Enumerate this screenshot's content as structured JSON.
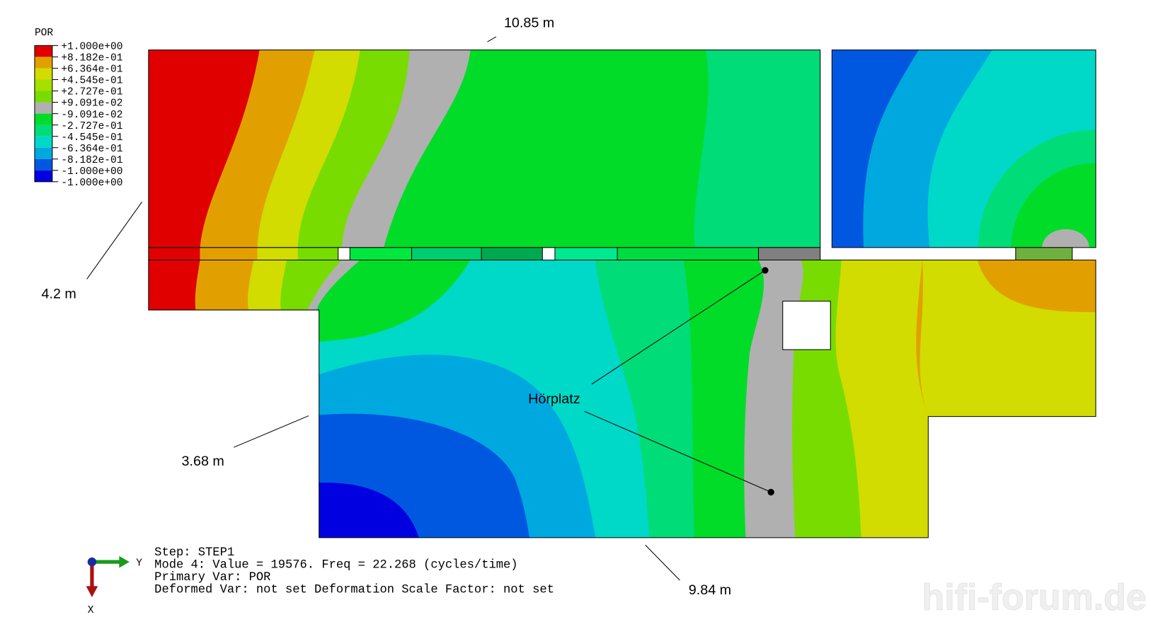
{
  "legend": {
    "title": "POR",
    "labels": [
      "+1.000e+00",
      "+8.182e-01",
      "+6.364e-01",
      "+4.545e-01",
      "+2.727e-01",
      "+9.091e-02",
      "-9.091e-02",
      "-2.727e-01",
      "-4.545e-01",
      "-6.364e-01",
      "-8.182e-01",
      "-1.000e+00"
    ],
    "extra_label": "-1.000e+00",
    "colors": [
      "#e00000",
      "#e2a000",
      "#d2dc00",
      "#a6e000",
      "#78dc00",
      "#b0b0b0",
      "#00dc28",
      "#00dc78",
      "#00d8c8",
      "#00a8e0",
      "#0058e0",
      "#0000e0"
    ]
  },
  "dimensions": [
    "10.85 m",
    "4.2 m",
    "3.68 m",
    "9.84 m"
  ],
  "annotation": "Hörplatz",
  "info": {
    "lines": [
      "Step: STEP1",
      "Mode         4: Value =    19576.     Freq =    22.268     (cycles/time)",
      "Primary Var: POR",
      "Deformed Var: not set   Deformation Scale Factor: not set"
    ]
  },
  "triad": {
    "y": "Y",
    "x": "X"
  },
  "watermark": "hifi-forum.de"
}
